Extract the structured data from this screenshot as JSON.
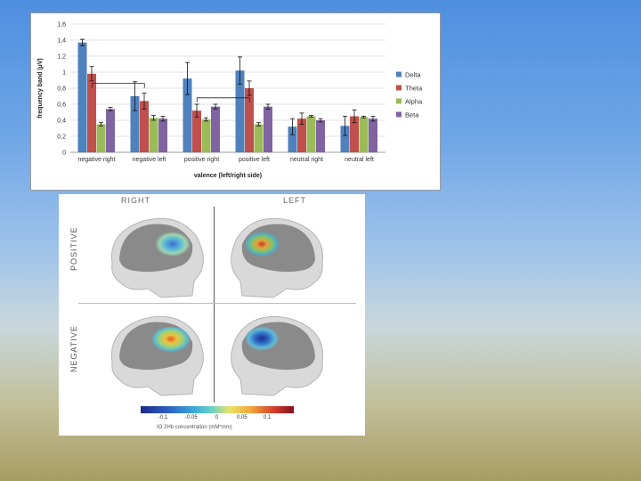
{
  "chart_data": {
    "type": "bar",
    "categories": [
      "negative right",
      "negative left",
      "positive right",
      "positive left",
      "neutral right",
      "neutral left"
    ],
    "series": [
      {
        "name": "Delta",
        "color": "#4f81bd",
        "values": [
          1.37,
          0.7,
          0.92,
          1.02,
          0.32,
          0.33
        ],
        "errors": [
          0.04,
          0.18,
          0.2,
          0.17,
          0.1,
          0.12
        ]
      },
      {
        "name": "Theta",
        "color": "#c0504d",
        "values": [
          0.98,
          0.64,
          0.52,
          0.8,
          0.42,
          0.45
        ],
        "errors": [
          0.09,
          0.1,
          0.08,
          0.09,
          0.07,
          0.08
        ]
      },
      {
        "name": "Alpha",
        "color": "#9bbb59",
        "values": [
          0.35,
          0.43,
          0.41,
          0.35,
          0.45,
          0.44
        ],
        "errors": [
          0.02,
          0.03,
          0.02,
          0.02,
          0.01,
          0.01
        ]
      },
      {
        "name": "Beta",
        "color": "#8064a2",
        "values": [
          0.54,
          0.42,
          0.57,
          0.57,
          0.4,
          0.42
        ],
        "errors": [
          0.02,
          0.03,
          0.03,
          0.03,
          0.02,
          0.03
        ]
      }
    ],
    "ylim": [
      0,
      1.6
    ],
    "yticks": [
      "0",
      "0,2",
      "0,4",
      "0,6",
      "0,8",
      "1",
      "1,2",
      "1,4",
      "1,6"
    ],
    "ylabel": "frequency band (µV)",
    "xlabel": "valence (left/right side)",
    "legend_position": "right",
    "legend_labels": [
      "Delta",
      "Theta",
      "Alpha",
      "Beta"
    ],
    "grid": true
  },
  "brain_figure": {
    "col_right": "RIGHT",
    "col_left": "LEFT",
    "row_positive": "POSITIVE",
    "row_negative": "NEGATIVE",
    "colorbar_ticks": [
      "-0.1",
      "-0.05",
      "0",
      "0.05",
      "0.1"
    ],
    "colorbar_caption": "IO 2Hb concentration (mM*mm)"
  }
}
